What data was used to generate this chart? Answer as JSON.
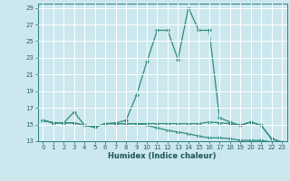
{
  "title": "",
  "xlabel": "Humidex (Indice chaleur)",
  "background_color": "#cce8ee",
  "grid_color": "#ffffff",
  "line_color": "#2e8b7a",
  "xlim": [
    -0.5,
    23.5
  ],
  "ylim": [
    13,
    29.5
  ],
  "yticks": [
    13,
    15,
    17,
    19,
    21,
    23,
    25,
    27,
    29
  ],
  "xticks": [
    0,
    1,
    2,
    3,
    4,
    5,
    6,
    7,
    8,
    9,
    10,
    11,
    12,
    13,
    14,
    15,
    16,
    17,
    18,
    19,
    20,
    21,
    22,
    23
  ],
  "series": [
    {
      "x": [
        0,
        1,
        2,
        3,
        4,
        5,
        6,
        7,
        8,
        9,
        10,
        11,
        12,
        13,
        14,
        15,
        16,
        17,
        18,
        19,
        20,
        21,
        22,
        23
      ],
      "y": [
        15.5,
        15.2,
        15.2,
        16.5,
        14.9,
        14.7,
        15.1,
        15.2,
        15.5,
        18.5,
        22.5,
        26.3,
        26.3,
        22.8,
        29.0,
        26.3,
        26.3,
        15.8,
        15.3,
        14.9,
        15.3,
        14.9,
        13.3,
        12.9
      ]
    },
    {
      "x": [
        0,
        1,
        2,
        3,
        4,
        5,
        6,
        7,
        8,
        9,
        10,
        11,
        12,
        13,
        14,
        15,
        16,
        17,
        18,
        19,
        20,
        21,
        22,
        23
      ],
      "y": [
        15.5,
        15.2,
        15.2,
        15.2,
        14.9,
        14.7,
        15.1,
        15.1,
        15.1,
        15.1,
        15.1,
        15.1,
        15.1,
        15.1,
        15.1,
        15.1,
        15.3,
        15.2,
        15.1,
        14.9,
        15.3,
        14.9,
        13.3,
        12.9
      ]
    },
    {
      "x": [
        0,
        1,
        2,
        3,
        4,
        5,
        6,
        7,
        8,
        9,
        10,
        11,
        12,
        13,
        14,
        15,
        16,
        17,
        18,
        19,
        20,
        21,
        22,
        23
      ],
      "y": [
        15.5,
        15.2,
        15.2,
        15.2,
        14.9,
        14.7,
        15.1,
        15.1,
        15.1,
        15.1,
        14.9,
        14.6,
        14.3,
        14.1,
        13.9,
        13.6,
        13.4,
        13.4,
        13.3,
        13.1,
        13.1,
        13.1,
        12.9,
        12.9
      ]
    }
  ]
}
